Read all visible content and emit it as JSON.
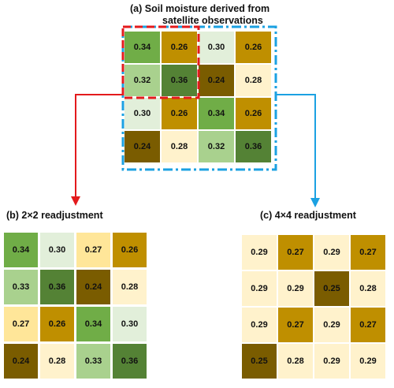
{
  "panel_a": {
    "title_line1": "(a) Soil moisture derived from",
    "title_line2": "satellite observations",
    "cells": [
      [
        "0.34",
        "0.26",
        "0.30",
        "0.26"
      ],
      [
        "0.32",
        "0.36",
        "0.24",
        "0.28"
      ],
      [
        "0.30",
        "0.26",
        "0.34",
        "0.26"
      ],
      [
        "0.24",
        "0.28",
        "0.32",
        "0.36"
      ]
    ]
  },
  "panel_b": {
    "title": "(b) 2×2 readjustment",
    "cells": [
      [
        "0.34",
        "0.30",
        "0.27",
        "0.26"
      ],
      [
        "0.33",
        "0.36",
        "0.24",
        "0.28"
      ],
      [
        "0.27",
        "0.26",
        "0.34",
        "0.30"
      ],
      [
        "0.24",
        "0.28",
        "0.33",
        "0.36"
      ]
    ]
  },
  "panel_c": {
    "title": "(c) 4×4 readjustment",
    "cells": [
      [
        "0.29",
        "0.27",
        "0.29",
        "0.27"
      ],
      [
        "0.29",
        "0.29",
        "0.25",
        "0.28"
      ],
      [
        "0.29",
        "0.27",
        "0.29",
        "0.27"
      ],
      [
        "0.25",
        "0.28",
        "0.29",
        "0.29"
      ]
    ]
  },
  "colors": {
    "0.24": "#7a5c00",
    "0.25": "#7a5c00",
    "0.26": "#bf8f00",
    "0.27": "#bf8f00",
    "0.28": "#fff2cc",
    "0.29": "#fff2cc",
    "0.30": "#e2efda",
    "0.32": "#a9d18e",
    "0.33": "#a9d18e",
    "0.34": "#70ad47",
    "0.36": "#548235",
    "panel_b_0.27": "#ffe699",
    "red_outline": "#e31a1c",
    "blue_outline": "#1ba1e2"
  }
}
